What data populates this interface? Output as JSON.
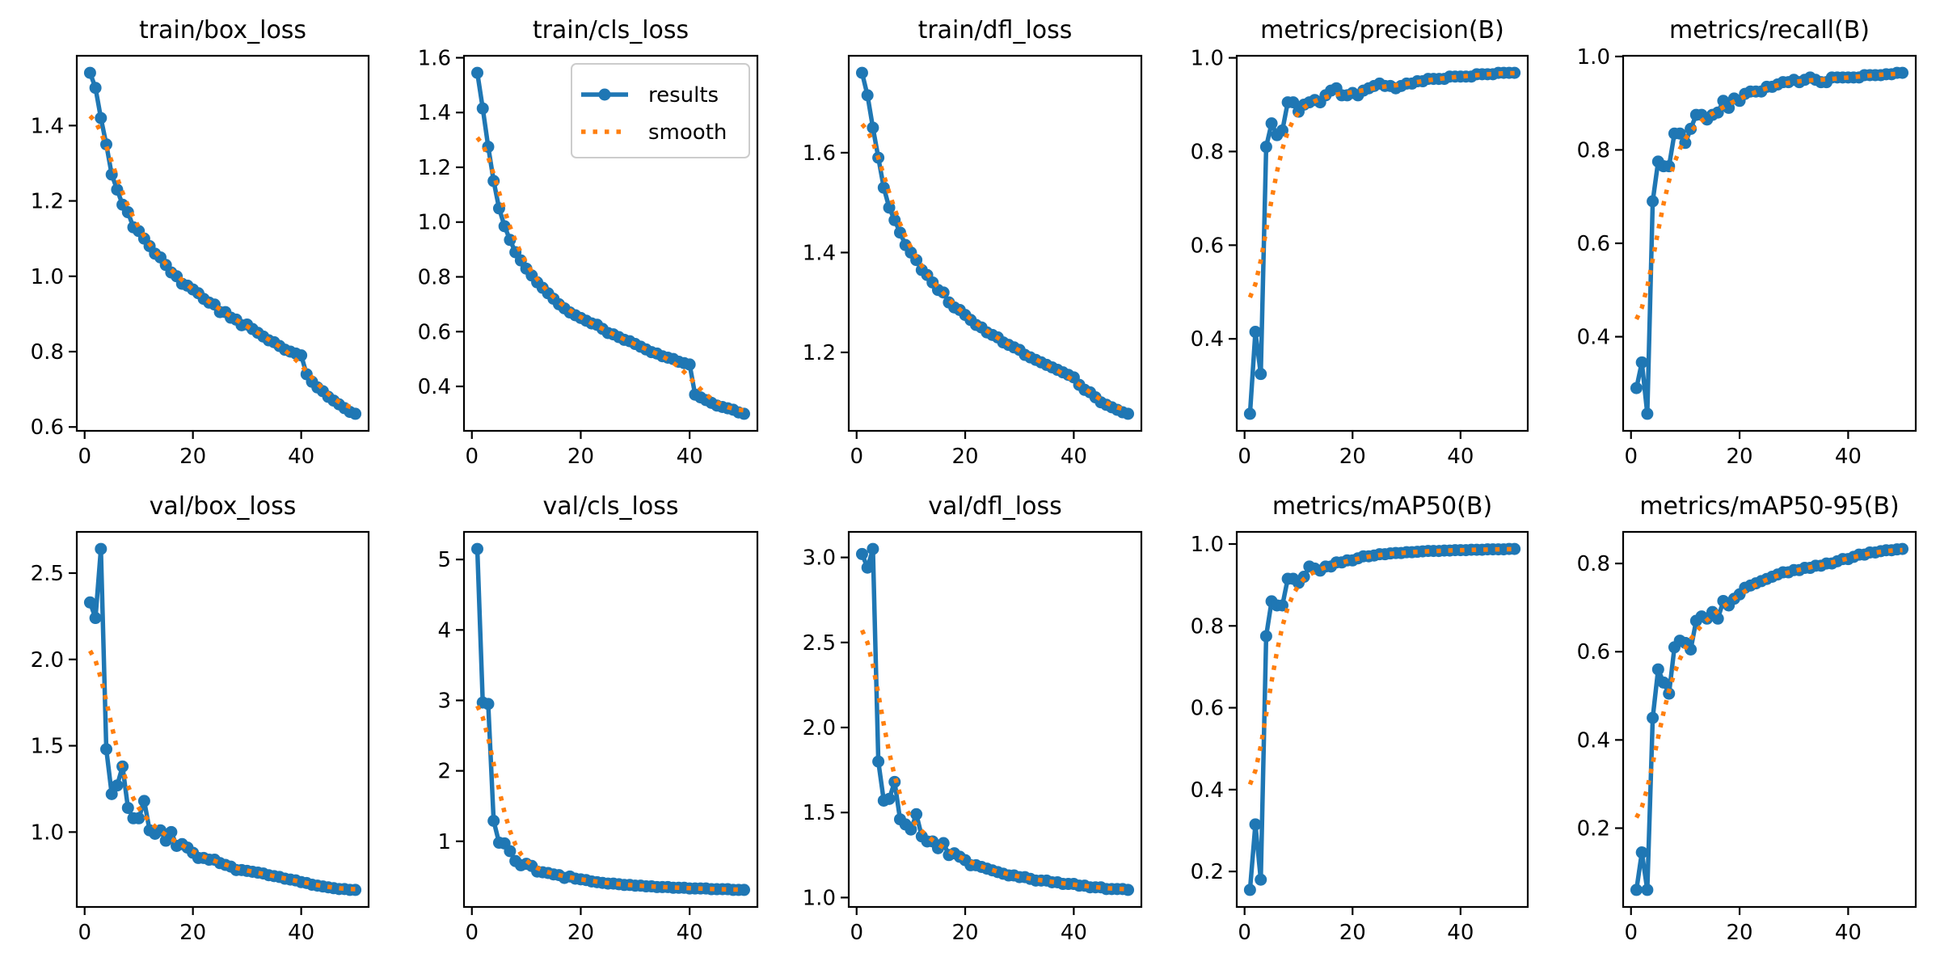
{
  "legend": {
    "results_label": "results",
    "smooth_label": "smooth"
  },
  "colors": {
    "results": "#1f77b4",
    "smooth": "#ff7f0e"
  },
  "smoothing": {
    "method": "gaussian",
    "sigma": 3
  },
  "chart_data": [
    {
      "type": "line",
      "title": "train/box_loss",
      "x_start": 1,
      "xticks": [
        "0",
        "20",
        "40"
      ],
      "yticks": [
        "0.6",
        "0.8",
        "1.0",
        "1.2",
        "1.4"
      ],
      "values": [
        1.54,
        1.5,
        1.42,
        1.35,
        1.27,
        1.23,
        1.19,
        1.17,
        1.13,
        1.12,
        1.1,
        1.08,
        1.06,
        1.05,
        1.03,
        1.01,
        1.0,
        0.98,
        0.975,
        0.965,
        0.955,
        0.94,
        0.93,
        0.925,
        0.905,
        0.905,
        0.89,
        0.885,
        0.87,
        0.872,
        0.86,
        0.85,
        0.84,
        0.83,
        0.825,
        0.815,
        0.805,
        0.8,
        0.795,
        0.79,
        0.74,
        0.72,
        0.705,
        0.695,
        0.68,
        0.67,
        0.66,
        0.65,
        0.64,
        0.635
      ]
    },
    {
      "type": "line",
      "title": "train/cls_loss",
      "x_start": 1,
      "xticks": [
        "0",
        "20",
        "40"
      ],
      "yticks": [
        "0.4",
        "0.6",
        "0.8",
        "1.0",
        "1.2",
        "1.4",
        "1.6"
      ],
      "legend": "top-right",
      "values": [
        1.545,
        1.415,
        1.275,
        1.15,
        1.05,
        0.985,
        0.935,
        0.89,
        0.86,
        0.83,
        0.805,
        0.78,
        0.76,
        0.74,
        0.72,
        0.7,
        0.685,
        0.67,
        0.66,
        0.65,
        0.64,
        0.63,
        0.625,
        0.61,
        0.595,
        0.59,
        0.58,
        0.57,
        0.565,
        0.555,
        0.545,
        0.535,
        0.525,
        0.52,
        0.51,
        0.505,
        0.5,
        0.49,
        0.485,
        0.48,
        0.37,
        0.36,
        0.35,
        0.34,
        0.33,
        0.325,
        0.32,
        0.315,
        0.305,
        0.3
      ]
    },
    {
      "type": "line",
      "title": "train/dfl_loss",
      "x_start": 1,
      "xticks": [
        "0",
        "20",
        "40"
      ],
      "yticks": [
        "1.2",
        "1.4",
        "1.6"
      ],
      "values": [
        1.76,
        1.715,
        1.65,
        1.59,
        1.53,
        1.49,
        1.465,
        1.44,
        1.415,
        1.4,
        1.385,
        1.365,
        1.355,
        1.34,
        1.325,
        1.32,
        1.3,
        1.29,
        1.285,
        1.275,
        1.265,
        1.255,
        1.25,
        1.24,
        1.235,
        1.23,
        1.22,
        1.215,
        1.21,
        1.205,
        1.195,
        1.19,
        1.185,
        1.18,
        1.175,
        1.17,
        1.165,
        1.16,
        1.155,
        1.15,
        1.135,
        1.125,
        1.12,
        1.11,
        1.1,
        1.095,
        1.09,
        1.085,
        1.08,
        1.077
      ]
    },
    {
      "type": "line",
      "title": "metrics/precision(B)",
      "x_start": 1,
      "xticks": [
        "0",
        "20",
        "40"
      ],
      "yticks": [
        "0.4",
        "0.6",
        "0.8",
        "1.0"
      ],
      "values": [
        0.24,
        0.415,
        0.325,
        0.81,
        0.86,
        0.835,
        0.845,
        0.905,
        0.905,
        0.885,
        0.9,
        0.905,
        0.91,
        0.905,
        0.92,
        0.93,
        0.935,
        0.92,
        0.92,
        0.925,
        0.92,
        0.93,
        0.935,
        0.94,
        0.945,
        0.94,
        0.94,
        0.935,
        0.94,
        0.945,
        0.945,
        0.95,
        0.95,
        0.955,
        0.955,
        0.955,
        0.955,
        0.96,
        0.96,
        0.96,
        0.96,
        0.96,
        0.965,
        0.965,
        0.965,
        0.965,
        0.968,
        0.968,
        0.968,
        0.968
      ]
    },
    {
      "type": "line",
      "title": "metrics/recall(B)",
      "x_start": 1,
      "xticks": [
        "0",
        "20",
        "40"
      ],
      "yticks": [
        "0.4",
        "0.6",
        "0.8",
        "1.0"
      ],
      "values": [
        0.29,
        0.345,
        0.235,
        0.69,
        0.775,
        0.765,
        0.765,
        0.835,
        0.835,
        0.815,
        0.845,
        0.875,
        0.875,
        0.865,
        0.875,
        0.88,
        0.905,
        0.89,
        0.91,
        0.905,
        0.92,
        0.925,
        0.925,
        0.925,
        0.935,
        0.935,
        0.94,
        0.945,
        0.945,
        0.95,
        0.945,
        0.95,
        0.955,
        0.95,
        0.945,
        0.945,
        0.955,
        0.955,
        0.955,
        0.955,
        0.955,
        0.955,
        0.96,
        0.96,
        0.96,
        0.96,
        0.962,
        0.962,
        0.965,
        0.965
      ]
    },
    {
      "type": "line",
      "title": "val/box_loss",
      "x_start": 1,
      "xticks": [
        "0",
        "20",
        "40"
      ],
      "yticks": [
        "1.0",
        "1.5",
        "2.0",
        "2.5"
      ],
      "values": [
        2.33,
        2.24,
        2.64,
        1.48,
        1.22,
        1.27,
        1.38,
        1.14,
        1.08,
        1.08,
        1.18,
        1.01,
        0.99,
        1.01,
        0.95,
        1.0,
        0.92,
        0.93,
        0.91,
        0.88,
        0.85,
        0.85,
        0.84,
        0.84,
        0.82,
        0.81,
        0.8,
        0.78,
        0.78,
        0.775,
        0.77,
        0.765,
        0.76,
        0.75,
        0.745,
        0.74,
        0.73,
        0.725,
        0.72,
        0.71,
        0.705,
        0.695,
        0.69,
        0.685,
        0.68,
        0.675,
        0.67,
        0.67,
        0.665,
        0.665
      ]
    },
    {
      "type": "line",
      "title": "val/cls_loss",
      "x_start": 1,
      "xticks": [
        "0",
        "20",
        "40"
      ],
      "yticks": [
        "1",
        "2",
        "3",
        "4",
        "5"
      ],
      "values": [
        5.15,
        2.97,
        2.95,
        1.29,
        0.98,
        0.97,
        0.86,
        0.72,
        0.66,
        0.68,
        0.65,
        0.57,
        0.56,
        0.55,
        0.53,
        0.52,
        0.48,
        0.5,
        0.47,
        0.46,
        0.45,
        0.43,
        0.42,
        0.41,
        0.4,
        0.4,
        0.39,
        0.38,
        0.38,
        0.37,
        0.37,
        0.36,
        0.36,
        0.35,
        0.35,
        0.35,
        0.34,
        0.34,
        0.34,
        0.33,
        0.33,
        0.33,
        0.33,
        0.32,
        0.32,
        0.32,
        0.32,
        0.31,
        0.31,
        0.31
      ]
    },
    {
      "type": "line",
      "title": "val/dfl_loss",
      "x_start": 1,
      "xticks": [
        "0",
        "20",
        "40"
      ],
      "yticks": [
        "1.0",
        "1.5",
        "2.0",
        "2.5",
        "3.0"
      ],
      "values": [
        3.02,
        2.94,
        3.05,
        1.8,
        1.57,
        1.58,
        1.68,
        1.46,
        1.43,
        1.4,
        1.49,
        1.36,
        1.33,
        1.33,
        1.29,
        1.32,
        1.25,
        1.26,
        1.24,
        1.22,
        1.19,
        1.19,
        1.18,
        1.17,
        1.16,
        1.15,
        1.14,
        1.13,
        1.13,
        1.12,
        1.12,
        1.11,
        1.1,
        1.1,
        1.1,
        1.09,
        1.09,
        1.08,
        1.08,
        1.08,
        1.07,
        1.07,
        1.06,
        1.06,
        1.06,
        1.05,
        1.05,
        1.05,
        1.05,
        1.045
      ]
    },
    {
      "type": "line",
      "title": "metrics/mAP50(B)",
      "x_start": 1,
      "xticks": [
        "0",
        "20",
        "40"
      ],
      "yticks": [
        "0.2",
        "0.4",
        "0.6",
        "0.8",
        "1.0"
      ],
      "values": [
        0.155,
        0.315,
        0.18,
        0.775,
        0.86,
        0.85,
        0.85,
        0.915,
        0.915,
        0.905,
        0.92,
        0.945,
        0.94,
        0.935,
        0.945,
        0.945,
        0.955,
        0.955,
        0.96,
        0.96,
        0.965,
        0.97,
        0.97,
        0.972,
        0.975,
        0.975,
        0.977,
        0.978,
        0.978,
        0.98,
        0.98,
        0.981,
        0.982,
        0.983,
        0.983,
        0.983,
        0.984,
        0.984,
        0.985,
        0.985,
        0.985,
        0.986,
        0.986,
        0.986,
        0.987,
        0.987,
        0.987,
        0.987,
        0.988,
        0.988
      ]
    },
    {
      "type": "line",
      "title": "metrics/mAP50-95(B)",
      "x_start": 1,
      "xticks": [
        "0",
        "20",
        "40"
      ],
      "yticks": [
        "0.2",
        "0.4",
        "0.6",
        "0.8"
      ],
      "values": [
        0.06,
        0.145,
        0.06,
        0.45,
        0.56,
        0.53,
        0.505,
        0.61,
        0.625,
        0.62,
        0.605,
        0.67,
        0.68,
        0.675,
        0.69,
        0.675,
        0.715,
        0.705,
        0.72,
        0.73,
        0.745,
        0.75,
        0.755,
        0.76,
        0.765,
        0.77,
        0.775,
        0.78,
        0.78,
        0.785,
        0.785,
        0.79,
        0.79,
        0.795,
        0.795,
        0.8,
        0.8,
        0.805,
        0.81,
        0.81,
        0.815,
        0.82,
        0.82,
        0.825,
        0.825,
        0.828,
        0.83,
        0.83,
        0.832,
        0.833
      ]
    }
  ]
}
